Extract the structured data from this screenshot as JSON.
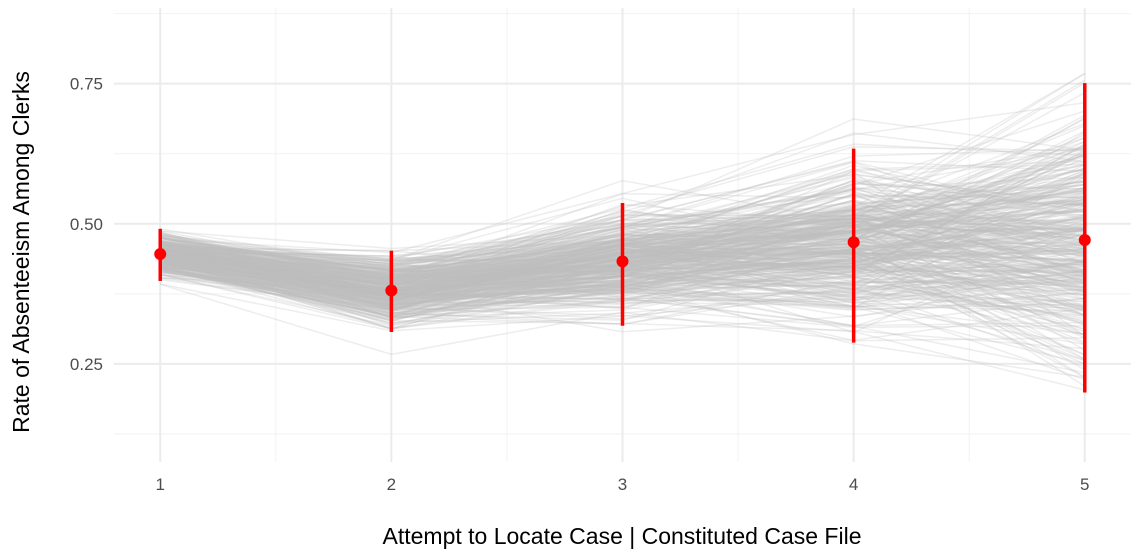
{
  "chart_data": {
    "type": "line",
    "title": "",
    "xlabel": "Attempt to Locate Case | Constituted Case File",
    "ylabel": "Rate of Absenteeism Among Clerks",
    "x": [
      1,
      2,
      3,
      4,
      5
    ],
    "x_ticks": [
      "1",
      "2",
      "3",
      "4",
      "5"
    ],
    "y_ticks": [
      "0.25",
      "0.50",
      "0.75"
    ],
    "xlim": [
      0.8,
      5.2
    ],
    "ylim": [
      0.075,
      0.885
    ],
    "grid": true,
    "legend": "none",
    "estimate": {
      "values": [
        0.446,
        0.381,
        0.433,
        0.467,
        0.471
      ],
      "lower": [
        0.398,
        0.307,
        0.318,
        0.288,
        0.199
      ],
      "upper": [
        0.491,
        0.452,
        0.537,
        0.634,
        0.751
      ],
      "color": "#ff0000"
    },
    "background_draws": {
      "description_count": 400,
      "mean": [
        0.446,
        0.381,
        0.433,
        0.467,
        0.471
      ],
      "spread": [
        0.026,
        0.042,
        0.06,
        0.1,
        0.16
      ],
      "color": "#bebebe"
    }
  }
}
